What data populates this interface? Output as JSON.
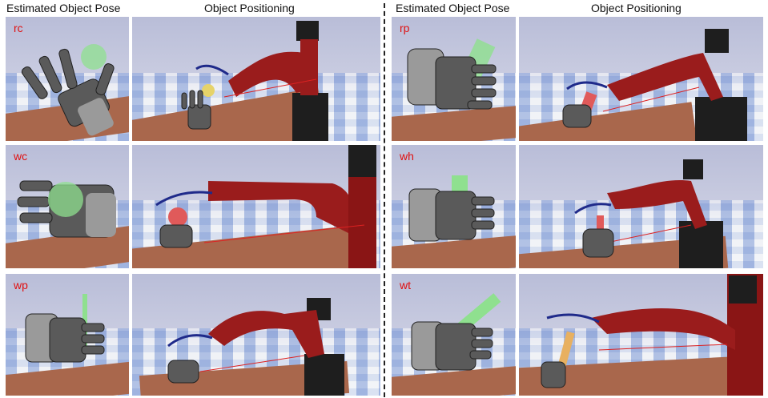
{
  "headers": {
    "estimated_object_pose": "Estimated Object Pose",
    "object_positioning": "Object Positioning"
  },
  "panels": [
    {
      "label": "rc"
    },
    {
      "label": "wc"
    },
    {
      "label": "wp"
    },
    {
      "label": "rp"
    },
    {
      "label": "wh"
    },
    {
      "label": "wt"
    }
  ],
  "colors": {
    "label": "#e01010",
    "robot_arm": "#9a1c1c",
    "hand": "#5a5a5a",
    "object_ghost": "#8fe08f",
    "table": "#a9674c"
  }
}
